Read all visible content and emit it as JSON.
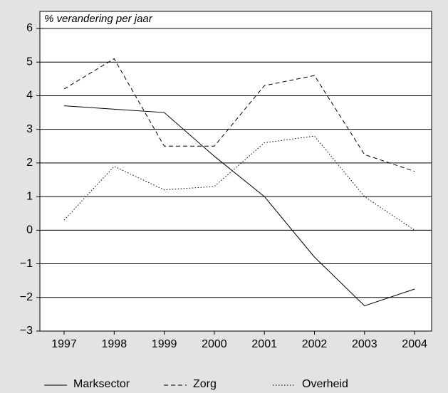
{
  "chart_data": {
    "type": "line",
    "y_label": "% verandering per jaar",
    "categories": [
      "1997",
      "1998",
      "1999",
      "2000",
      "2001",
      "2002",
      "2003",
      "2004"
    ],
    "series": [
      {
        "name": "Marksector",
        "color": "#000000",
        "dash": "solid",
        "values": [
          3.7,
          3.6,
          3.5,
          2.2,
          1.0,
          -0.8,
          -2.25,
          -1.75
        ]
      },
      {
        "name": "Zorg",
        "color": "#000000",
        "dash": "dashed",
        "values": [
          4.2,
          5.1,
          2.5,
          2.5,
          4.3,
          4.6,
          2.25,
          1.75
        ]
      },
      {
        "name": "Overheid",
        "color": "#000000",
        "dash": "dotted",
        "values": [
          0.3,
          1.9,
          1.2,
          1.3,
          2.6,
          2.8,
          1.0,
          0.0
        ]
      }
    ],
    "ylim": [
      -3,
      6
    ],
    "yticks": [
      {
        "value": -3,
        "label": "−3"
      },
      {
        "value": -2,
        "label": "−2"
      },
      {
        "value": -1,
        "label": "−1"
      },
      0,
      1,
      2,
      3,
      4,
      5,
      6
    ],
    "grid": true,
    "legend": "bottom"
  }
}
